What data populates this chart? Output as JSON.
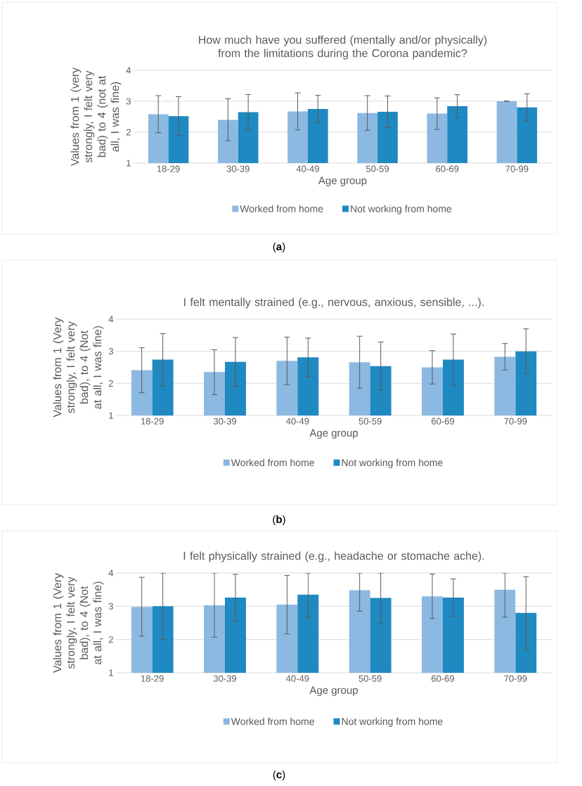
{
  "chart_data": [
    {
      "type": "bar",
      "title": "How much have you suffered (mentally and/or physically) from the limitations during the Corona pandemic?",
      "xlabel": "Age group",
      "ylabel": "Values from 1 (very strongly, I felt very bad) to 4 (not at all, I was fine)",
      "categories": [
        "18-29",
        "30-39",
        "40-49",
        "50-59",
        "60-69",
        "70-99"
      ],
      "ylim": [
        1,
        4
      ],
      "yticks": [
        1,
        2,
        3,
        4
      ],
      "grid": "y",
      "legend": "bottom",
      "series": [
        {
          "name": "Worked from home",
          "color": "#8cb9e2",
          "values": [
            2.58,
            2.4,
            2.67,
            2.62,
            2.6,
            3.0
          ],
          "errors": [
            0.6,
            0.68,
            0.6,
            0.56,
            0.51,
            0
          ]
        },
        {
          "name": "Not working from home",
          "color": "#1f89c2",
          "values": [
            2.52,
            2.65,
            2.75,
            2.66,
            2.84,
            2.8
          ],
          "errors": [
            0.63,
            0.57,
            0.44,
            0.51,
            0.37,
            0.44
          ]
        }
      ],
      "annotations": [
        "(**a**)"
      ]
    },
    {
      "type": "bar",
      "title": "I felt mentally strained (e.g., nervous, anxious, sensible, ...).",
      "xlabel": "Age group",
      "ylabel": "Values from 1 (Very strongly, I felt very bad), to 4 (Not at all, I was fine)",
      "categories": [
        "18-29",
        "30-39",
        "40-49",
        "50-59",
        "60-69",
        "70-99"
      ],
      "ylim": [
        1,
        4
      ],
      "yticks": [
        1,
        2,
        3,
        4
      ],
      "grid": "y",
      "legend": "bottom",
      "series": [
        {
          "name": "Worked from home",
          "color": "#8cb9e2",
          "values": [
            2.41,
            2.35,
            2.7,
            2.66,
            2.5,
            2.83
          ],
          "errors": [
            0.7,
            0.7,
            0.74,
            0.81,
            0.52,
            0.41
          ]
        },
        {
          "name": "Not working from home",
          "color": "#1f89c2",
          "values": [
            2.74,
            2.67,
            2.81,
            2.54,
            2.74,
            3.0
          ],
          "errors": [
            0.81,
            0.76,
            0.6,
            0.75,
            0.8,
            0.7
          ]
        }
      ],
      "annotations": [
        "(**b**)"
      ]
    },
    {
      "type": "bar",
      "title": "I felt physically strained (e.g., headache or stomache ache).",
      "xlabel": "Age group",
      "ylabel": "Values from 1 (Very strongly, I felt very bad), to 4 (Not at all, I was fine)",
      "categories": [
        "18-29",
        "30-39",
        "40-49",
        "50-59",
        "60-69",
        "70-99"
      ],
      "ylim": [
        1,
        4
      ],
      "yticks": [
        1,
        2,
        3,
        4
      ],
      "grid": "y",
      "legend": "bottom",
      "series": [
        {
          "name": "Worked from home",
          "color": "#8cb9e2",
          "values": [
            2.98,
            3.03,
            3.05,
            3.48,
            3.3,
            3.5
          ],
          "errors": [
            [
              2.1,
              3.87
            ],
            [
              2.07,
              4.0
            ],
            [
              2.17,
              3.93
            ],
            [
              2.85,
              4.0
            ],
            [
              2.63,
              3.97
            ],
            [
              2.67,
              4.0
            ]
          ]
        },
        {
          "name": "Not working from home",
          "color": "#1f89c2",
          "values": [
            3.0,
            3.26,
            3.35,
            3.25,
            3.26,
            2.8
          ],
          "errors": [
            [
              2.0,
              4.0
            ],
            [
              2.56,
              3.96
            ],
            [
              2.66,
              4.0
            ],
            [
              2.47,
              4.0
            ],
            [
              2.7,
              3.82
            ],
            [
              1.7,
              3.89
            ]
          ]
        }
      ],
      "annotations": [
        "(**c**)"
      ]
    }
  ]
}
